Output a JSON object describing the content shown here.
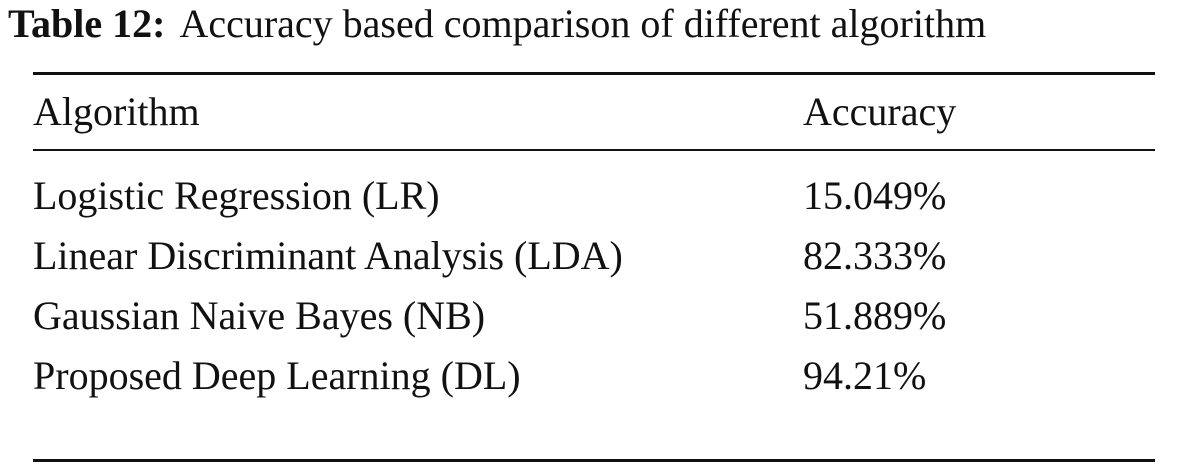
{
  "caption": {
    "label": "Table 12:",
    "title": "Accuracy based comparison of different algorithm"
  },
  "table": {
    "header": [
      "Algorithm",
      "Accuracy"
    ],
    "rows": [
      [
        "Logistic Regression (LR)",
        "15.049%"
      ],
      [
        "Linear Discriminant Analysis (LDA)",
        "82.333%"
      ],
      [
        "Gaussian Naive Bayes (NB)",
        "51.889%"
      ],
      [
        "Proposed Deep Learning (DL)",
        "94.21%"
      ]
    ]
  }
}
